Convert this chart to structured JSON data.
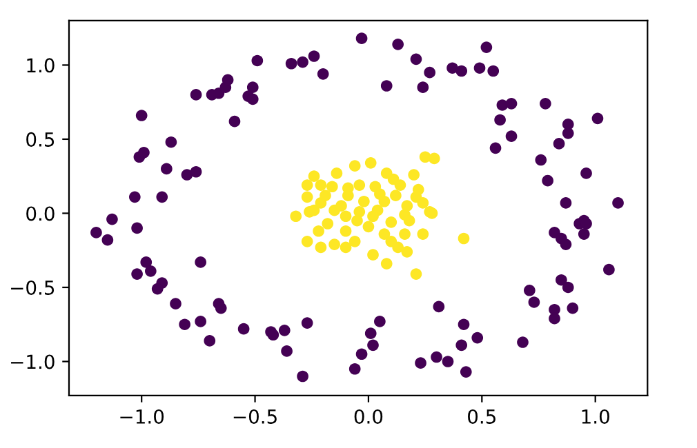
{
  "chart_data": {
    "type": "scatter",
    "xlim": [
      -1.32,
      1.23
    ],
    "ylim": [
      -1.23,
      1.3
    ],
    "xticks": [
      {
        "value": -1.0,
        "label": "−1.0"
      },
      {
        "value": -0.5,
        "label": "−0.5"
      },
      {
        "value": 0.0,
        "label": "0.0"
      },
      {
        "value": 0.5,
        "label": "0.5"
      },
      {
        "value": 1.0,
        "label": "1.0"
      }
    ],
    "yticks": [
      {
        "value": -1.0,
        "label": "−1.0"
      },
      {
        "value": -0.5,
        "label": "−0.5"
      },
      {
        "value": 0.0,
        "label": "0.0"
      },
      {
        "value": 0.5,
        "label": "0.5"
      },
      {
        "value": 1.0,
        "label": "1.0"
      }
    ],
    "marker": "circle",
    "grid": false,
    "series": [
      {
        "color": "#440154",
        "x": [
          -0.76,
          -0.69,
          -0.66,
          -0.63,
          -0.62,
          -1.0,
          -1.01,
          -0.99,
          -0.87,
          -0.89,
          -0.8,
          -0.76,
          -1.03,
          -0.91,
          -1.13,
          -0.59,
          -0.03,
          0.13,
          0.21,
          0.27,
          0.37,
          0.08,
          0.24,
          -0.49,
          -0.34,
          -0.29,
          -0.24,
          -0.2,
          -0.51,
          -0.53,
          -0.51,
          0.52,
          0.41,
          0.49,
          0.55,
          0.59,
          0.63,
          0.78,
          0.58,
          0.63,
          0.56,
          0.88,
          0.88,
          1.01,
          0.84,
          0.76,
          0.79,
          0.96,
          0.87,
          1.1,
          0.95,
          -1.2,
          -1.15,
          -1.02,
          -0.98,
          -0.96,
          -1.02,
          -0.74,
          -0.91,
          -0.93,
          -0.85,
          -0.81,
          -0.74,
          -0.7,
          -0.66,
          -0.65,
          -0.55,
          -0.43,
          -0.37,
          -0.42,
          -0.36,
          -0.27,
          -0.29,
          0.05,
          0.01,
          0.02,
          -0.03,
          -0.06,
          0.31,
          0.23,
          0.3,
          0.35,
          0.42,
          0.48,
          0.41,
          0.43,
          0.68,
          0.71,
          0.73,
          0.82,
          0.82,
          0.9,
          0.85,
          0.88,
          1.06,
          0.82,
          0.85,
          0.87,
          0.93,
          0.96,
          0.95
        ],
        "values": [
          0.8,
          0.8,
          0.81,
          0.85,
          0.9,
          0.66,
          0.38,
          0.41,
          0.48,
          0.3,
          0.26,
          0.28,
          0.11,
          0.11,
          -0.04,
          0.62,
          1.18,
          1.14,
          1.04,
          0.95,
          0.98,
          0.86,
          0.85,
          1.03,
          1.01,
          1.02,
          1.06,
          0.94,
          0.85,
          0.79,
          0.77,
          1.12,
          0.96,
          0.98,
          0.96,
          0.73,
          0.74,
          0.74,
          0.63,
          0.52,
          0.44,
          0.6,
          0.54,
          0.64,
          0.47,
          0.36,
          0.22,
          0.27,
          0.07,
          0.07,
          -0.05,
          -0.13,
          -0.18,
          -0.1,
          -0.33,
          -0.39,
          -0.41,
          -0.33,
          -0.47,
          -0.51,
          -0.61,
          -0.75,
          -0.73,
          -0.86,
          -0.61,
          -0.64,
          -0.78,
          -0.8,
          -0.79,
          -0.82,
          -0.93,
          -0.74,
          -1.1,
          -0.73,
          -0.81,
          -0.89,
          -0.95,
          -1.05,
          -0.63,
          -1.01,
          -0.97,
          -1.0,
          -0.75,
          -0.84,
          -0.89,
          -1.07,
          -0.87,
          -0.52,
          -0.6,
          -0.65,
          -0.71,
          -0.64,
          -0.45,
          -0.5,
          -0.38,
          -0.13,
          -0.17,
          -0.21,
          -0.07,
          -0.07,
          -0.14
        ]
      },
      {
        "color": "#fde725",
        "x": [
          0.42,
          0.21,
          0.25,
          0.29,
          -0.06,
          0.01,
          -0.14,
          -0.24,
          0.11,
          0.2,
          -0.27,
          -0.21,
          -0.16,
          -0.09,
          -0.04,
          0.03,
          0.14,
          -0.27,
          -0.21,
          -0.09,
          -0.02,
          0.12,
          0.21,
          0.24,
          -0.26,
          -0.32,
          -0.1,
          -0.04,
          0.04,
          0.16,
          0.27,
          -0.24,
          -0.18,
          -0.27,
          -0.21,
          -0.15,
          -0.1,
          -0.06,
          -0.1,
          0.02,
          0.0,
          0.07,
          0.1,
          0.02,
          0.08,
          0.13,
          0.17,
          0.16,
          0.18,
          0.24,
          0.28,
          -0.15,
          -0.12,
          0.07,
          0.17,
          -0.19,
          0.08,
          -0.05,
          0.1,
          -0.22,
          0.22,
          0.05
        ],
        "values": [
          -0.17,
          -0.41,
          0.38,
          0.37,
          0.32,
          0.34,
          0.27,
          0.25,
          0.23,
          0.26,
          0.19,
          0.19,
          0.18,
          0.17,
          0.19,
          0.18,
          0.19,
          0.11,
          0.07,
          0.12,
          0.08,
          0.12,
          0.11,
          0.07,
          0.01,
          -0.02,
          -0.02,
          0.01,
          0.02,
          -0.01,
          0.01,
          0.02,
          -0.07,
          -0.19,
          -0.23,
          -0.21,
          -0.12,
          -0.19,
          -0.23,
          -0.02,
          -0.09,
          -0.14,
          -0.19,
          -0.28,
          -0.34,
          -0.23,
          -0.26,
          -0.14,
          -0.05,
          -0.14,
          0.0,
          0.02,
          0.05,
          0.08,
          0.05,
          0.12,
          0.27,
          -0.05,
          -0.06,
          -0.12,
          0.16,
          0.13
        ]
      }
    ]
  }
}
